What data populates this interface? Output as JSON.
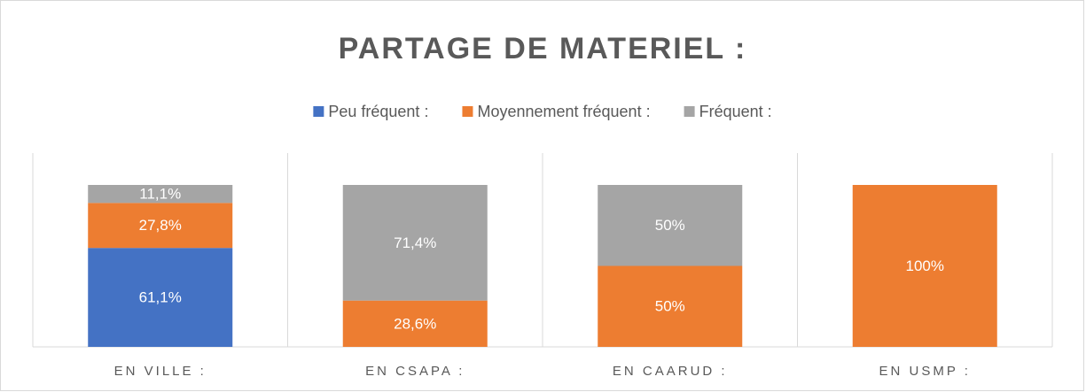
{
  "chart_data": {
    "type": "stacked_bar",
    "title": "PARTAGE DE MATERIEL :",
    "categories": [
      "EN VILLE :",
      "EN CSAPA :",
      "EN CAARUD :",
      "EN USMP :"
    ],
    "series": [
      {
        "name": "Peu fréquent :",
        "color": "#4472c4",
        "values": [
          61.1,
          null,
          null,
          null
        ],
        "value_labels": [
          "61,1%",
          null,
          null,
          null
        ]
      },
      {
        "name": "Moyennement fréquent :",
        "color": "#ed7d31",
        "values": [
          27.8,
          28.6,
          50,
          100
        ],
        "value_labels": [
          "27,8%",
          "28,6%",
          "50%",
          "100%"
        ]
      },
      {
        "name": "Fréquent :",
        "color": "#a5a5a5",
        "values": [
          11.1,
          71.4,
          50,
          null
        ],
        "value_labels": [
          "11,1%",
          "71,4%",
          "50%",
          null
        ]
      }
    ],
    "legend": "top"
  }
}
